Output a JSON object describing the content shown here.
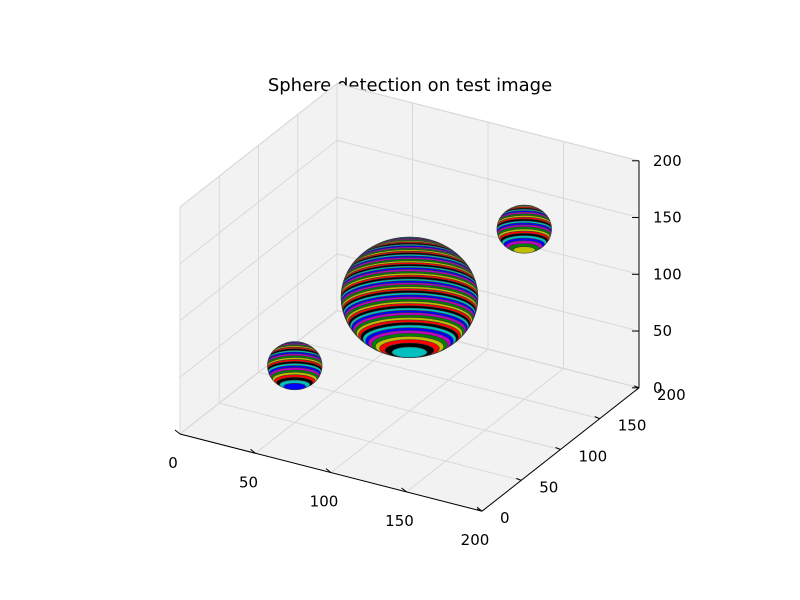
{
  "chart_data": {
    "type": "scatter3d",
    "title": "Sphere detection on test image",
    "xlabel": "",
    "ylabel": "",
    "zlabel": "",
    "xlim": [
      0,
      200
    ],
    "ylim": [
      0,
      200
    ],
    "zlim": [
      0,
      200
    ],
    "x_ticks": [
      "0",
      "50",
      "100",
      "150",
      "200"
    ],
    "y_ticks": [
      "0",
      "50",
      "100",
      "150",
      "200"
    ],
    "z_ticks": [
      "0",
      "50",
      "100",
      "150",
      "200"
    ],
    "grid": true,
    "pane_color": "#f2f2f2",
    "band_colors": [
      "#0000ff",
      "#008000",
      "#ff0000",
      "#00bfbf",
      "#bf00bf",
      "#bfbf00",
      "#000000"
    ],
    "spheres": [
      {
        "center": [
          100,
          100,
          100
        ],
        "radius": 50
      },
      {
        "center": [
          150,
          150,
          150
        ],
        "radius": 20
      },
      {
        "center": [
          50,
          50,
          50
        ],
        "radius": 20
      }
    ]
  }
}
